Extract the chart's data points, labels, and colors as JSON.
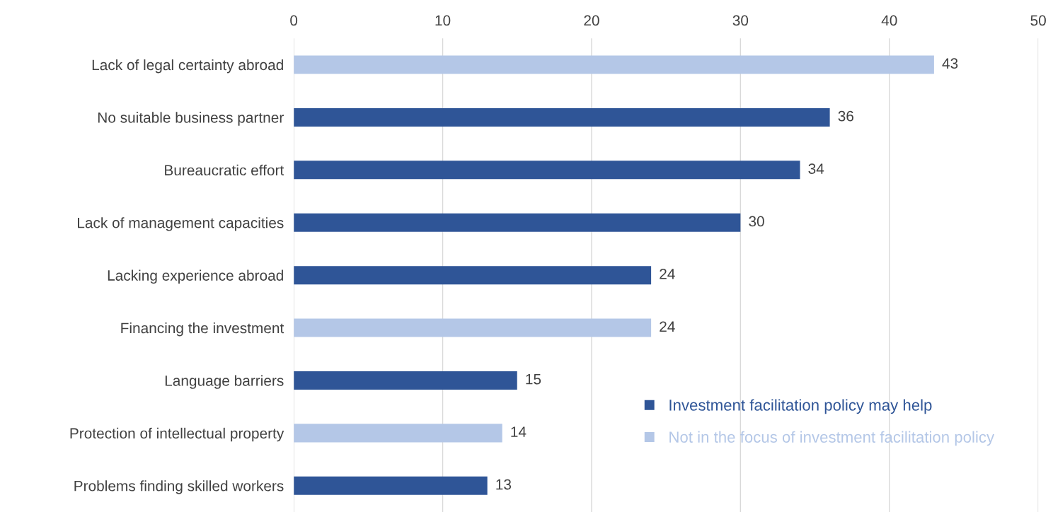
{
  "chart_data": {
    "type": "bar",
    "orientation": "horizontal",
    "categories": [
      "Lack of legal certainty abroad",
      "No suitable business partner",
      "Bureaucratic effort",
      "Lack of management capacities",
      "Lacking experience abroad",
      "Financing the investment",
      "Language barriers",
      "Protection of intellectual property",
      "Problems finding skilled workers"
    ],
    "series": [
      {
        "name": "Investment facilitation policy may help",
        "color": "#2f5597",
        "values": [
          null,
          36,
          34,
          30,
          24,
          null,
          15,
          null,
          13
        ]
      },
      {
        "name": "Not in the focus of investment facilitation policy",
        "color": "#b4c7e7",
        "values": [
          43,
          null,
          null,
          null,
          null,
          24,
          null,
          14,
          null
        ]
      }
    ],
    "xlim": [
      0,
      50
    ],
    "xticks": [
      0,
      10,
      20,
      30,
      40,
      50
    ],
    "grid": "x",
    "legend": "bottom right",
    "data_labels": true
  }
}
